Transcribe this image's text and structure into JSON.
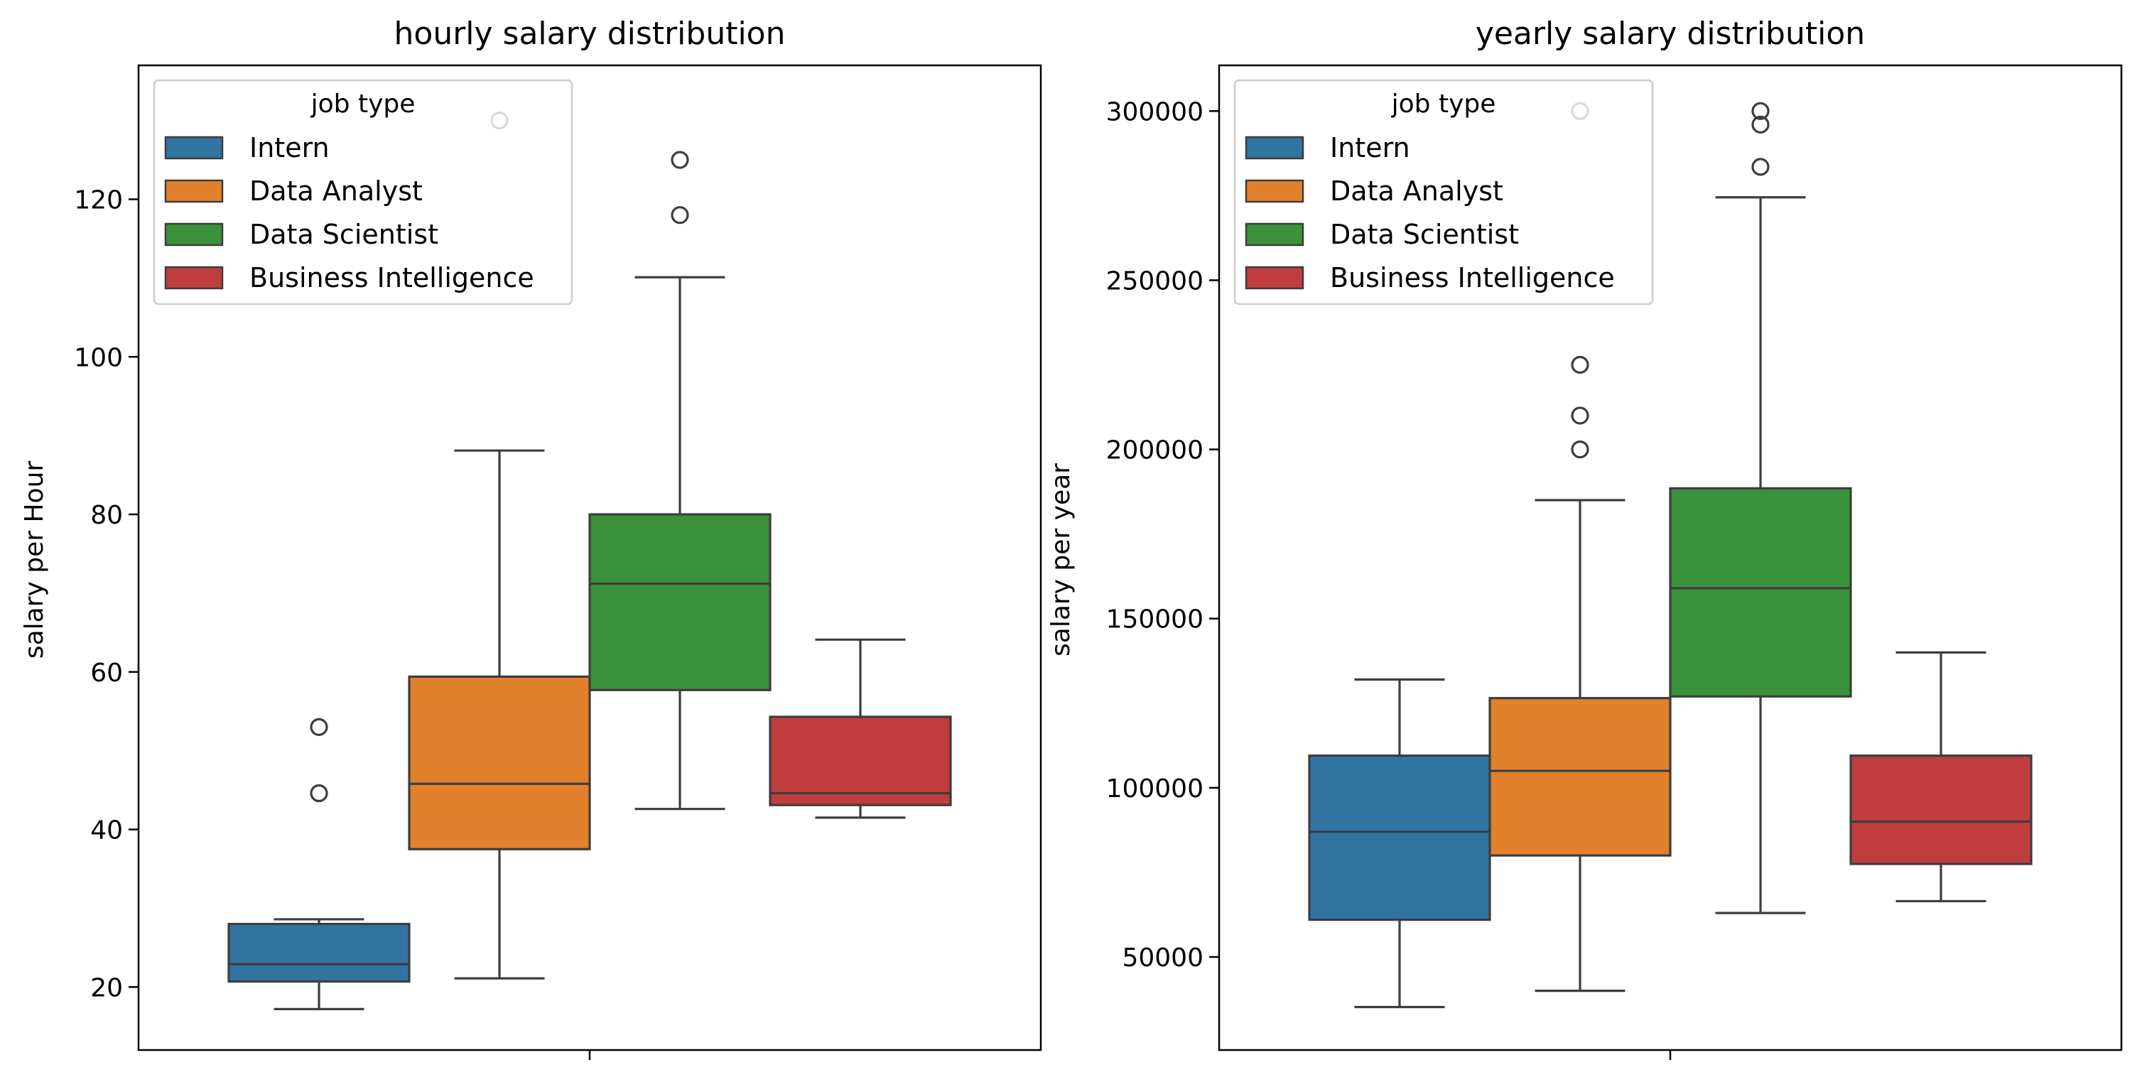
{
  "chart_data": [
    {
      "type": "box",
      "title": "hourly salary distribution",
      "xlabel": "",
      "ylabel": "salary per Hour",
      "ylim": [
        12,
        137
      ],
      "yticks": [
        20,
        40,
        60,
        80,
        100,
        120
      ],
      "legend": {
        "title": "job type",
        "placement": "upper-left",
        "entries": [
          "Intern",
          "Data Analyst",
          "Data Scientist",
          "Business Intelligence"
        ]
      },
      "series": [
        {
          "name": "Intern",
          "color": "#3274a1",
          "whisker_low": 17.2,
          "q1": 20.7,
          "median": 22.9,
          "q3": 28,
          "whisker_high": 28.6,
          "outliers": [
            44.6,
            53
          ]
        },
        {
          "name": "Data Analyst",
          "color": "#e1812c",
          "whisker_low": 21.1,
          "q1": 37.5,
          "median": 45.8,
          "q3": 59.4,
          "whisker_high": 88.1,
          "outliers": [
            130
          ]
        },
        {
          "name": "Data Scientist",
          "color": "#3a923a",
          "whisker_low": 42.6,
          "q1": 57.7,
          "median": 71.2,
          "q3": 80,
          "whisker_high": 110.1,
          "outliers": [
            118,
            125
          ]
        },
        {
          "name": "Business Intelligence",
          "color": "#c03d3e",
          "whisker_low": 41.5,
          "q1": 43.1,
          "median": 44.6,
          "q3": 54.3,
          "whisker_high": 64.1,
          "outliers": []
        }
      ]
    },
    {
      "type": "box",
      "title": "yearly salary distribution",
      "xlabel": "",
      "ylabel": "salary per year",
      "ylim": [
        22500,
        313500
      ],
      "yticks": [
        50000,
        100000,
        150000,
        200000,
        250000,
        300000
      ],
      "legend": {
        "title": "job type",
        "placement": "upper-left",
        "entries": [
          "Intern",
          "Data Analyst",
          "Data Scientist",
          "Business Intelligence"
        ]
      },
      "series": [
        {
          "name": "Intern",
          "color": "#3274a1",
          "whisker_low": 35200,
          "q1": 61000,
          "median": 87000,
          "q3": 109500,
          "whisker_high": 132000,
          "outliers": []
        },
        {
          "name": "Data Analyst",
          "color": "#e1812c",
          "whisker_low": 40000,
          "q1": 80000,
          "median": 105000,
          "q3": 126500,
          "whisker_high": 185000,
          "outliers": [
            200000,
            210000,
            225000,
            300000
          ]
        },
        {
          "name": "Data Scientist",
          "color": "#3a923a",
          "whisker_low": 63000,
          "q1": 127000,
          "median": 159000,
          "q3": 188500,
          "whisker_high": 274500,
          "outliers": [
            283500,
            296000,
            300000
          ]
        },
        {
          "name": "Business Intelligence",
          "color": "#c03d3e",
          "whisker_low": 66500,
          "q1": 77500,
          "median": 90000,
          "q3": 109500,
          "whisker_high": 140000,
          "outliers": []
        }
      ]
    }
  ]
}
